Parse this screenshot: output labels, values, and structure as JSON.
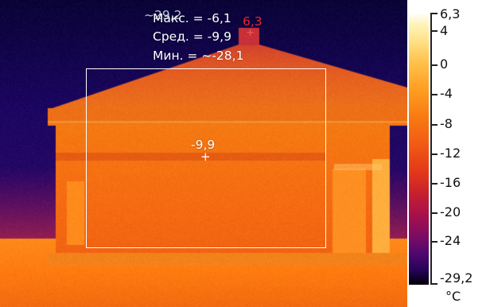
{
  "stats": {
    "max_line": "Макс. = -6,1",
    "max_overlay": "~29,2",
    "avg_line": "Сред. = -9,9",
    "min_line": "Мин. = ~-28,1"
  },
  "markers": {
    "hot_spot_value": "6,3",
    "hot_spot_symbol": "+",
    "center_value": "-9,9",
    "center_symbol": "+"
  },
  "scale": {
    "ticks": [
      "6,3",
      "4",
      "0",
      "-4",
      "-8",
      "-12",
      "-16",
      "-20",
      "-24",
      "-29,2"
    ],
    "unit": "°C"
  },
  "colors": {
    "accent_hot": "#e8252d",
    "overlay_text": "#ffffff",
    "palette": "iron"
  }
}
